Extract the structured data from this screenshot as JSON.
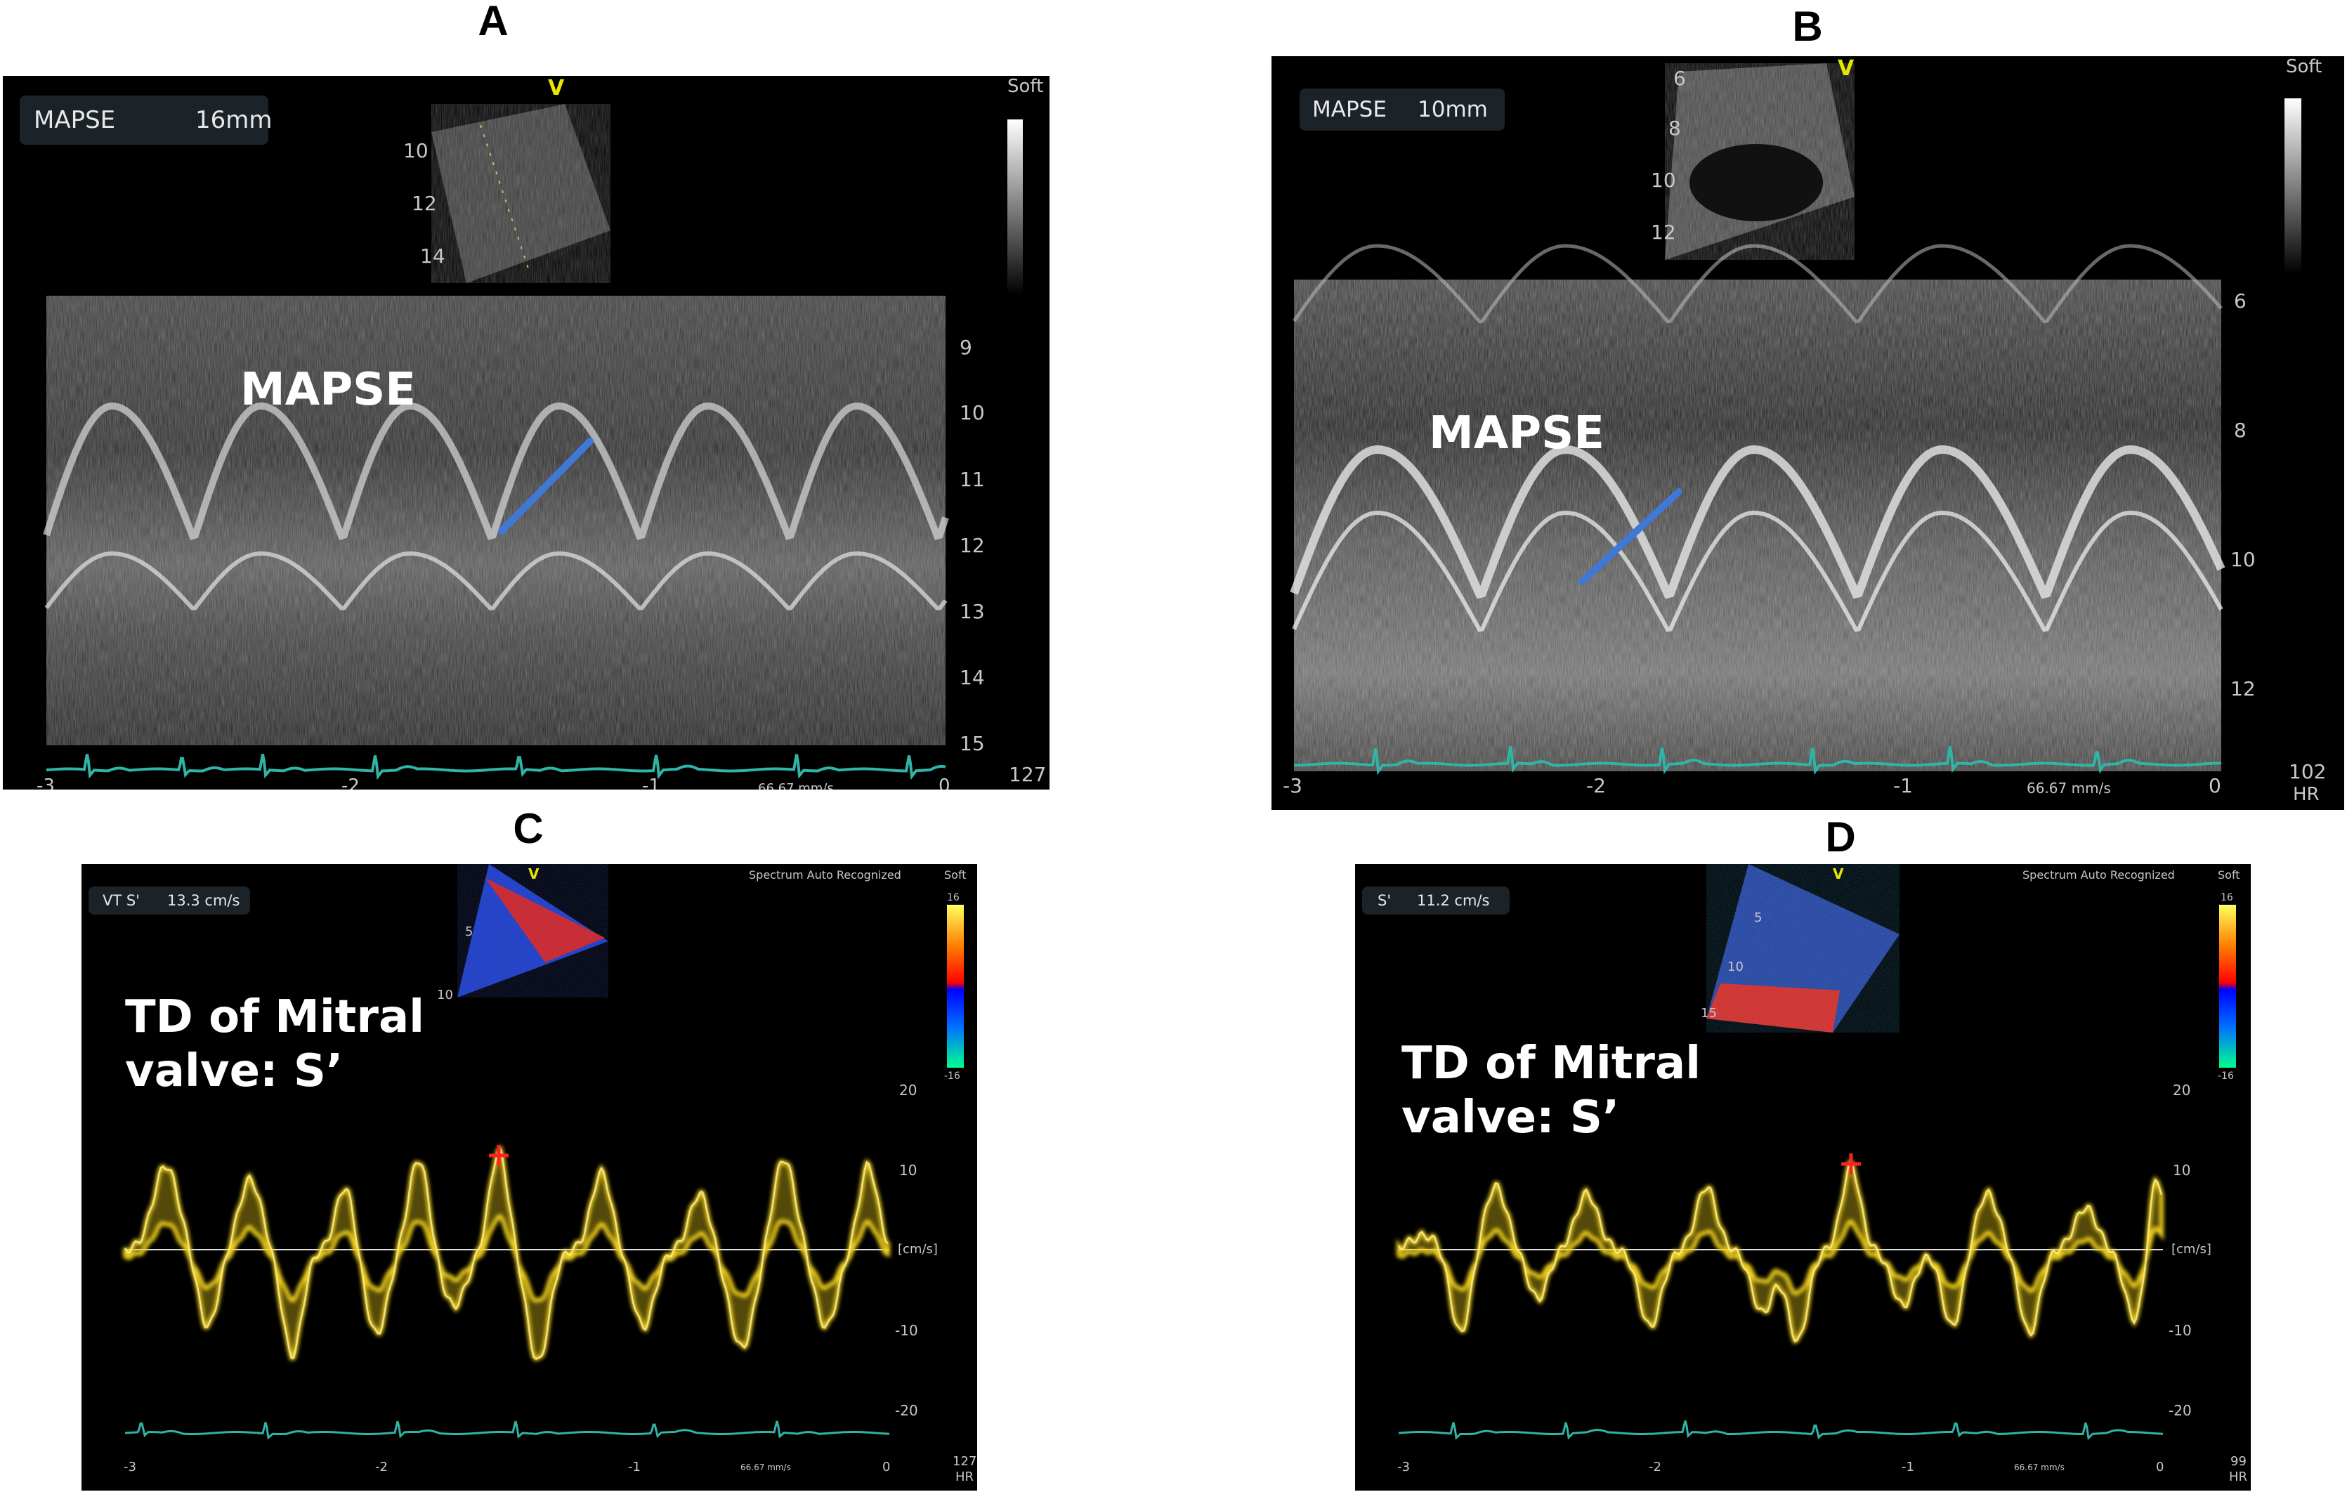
{
  "panels": {
    "a": {
      "letter": "A",
      "measure_name": "MAPSE",
      "measure_value": "16mm",
      "overlay": "MAPSE",
      "soft": "Soft",
      "v": "V",
      "depth_sector": [
        "10",
        "12",
        "14"
      ],
      "depth_ticks": [
        "9",
        "10",
        "11",
        "12",
        "13",
        "14",
        "15"
      ],
      "time_ticks": [
        "-3",
        "-2",
        "-1",
        "0"
      ],
      "speed": "66.67 mm/s",
      "hr": "127"
    },
    "b": {
      "letter": "B",
      "measure_name": "MAPSE",
      "measure_value": "10mm",
      "overlay": "MAPSE",
      "soft": "Soft",
      "v": "V",
      "depth_sector": [
        "6",
        "8",
        "10",
        "12"
      ],
      "depth_ticks": [
        "6",
        "8",
        "10",
        "12"
      ],
      "time_ticks": [
        "-3",
        "-2",
        "-1",
        "0"
      ],
      "speed": "66.67 mm/s",
      "hr": "102",
      "hr_label": "HR"
    },
    "c": {
      "letter": "C",
      "measure_name": "VT S'",
      "measure_value": "13.3 cm/s",
      "overlay": "TD of Mitral\nvalve: S’",
      "soft": "Soft",
      "v": "V",
      "spectrum": "Spectrum Auto Recognized",
      "scale_top": "16",
      "scale_bottom": "-16",
      "depth_sector": [
        "5",
        "10"
      ],
      "vel_ticks": [
        "20",
        "10",
        "[cm/s]",
        "-10",
        "-20"
      ],
      "time_ticks": [
        "-3",
        "-2",
        "-1",
        "0"
      ],
      "speed": "66.67 mm/s",
      "hr": "127",
      "hr_label": "HR"
    },
    "d": {
      "letter": "D",
      "measure_name": "S'",
      "measure_value": "11.2 cm/s",
      "overlay": "TD of Mitral\nvalve: S’",
      "soft": "Soft",
      "v": "V",
      "spectrum": "Spectrum Auto Recognized",
      "scale_top": "16",
      "scale_bottom": "-16",
      "depth_sector": [
        "5",
        "10",
        "15"
      ],
      "vel_ticks": [
        "20",
        "10",
        "[cm/s]",
        "-10",
        "-20"
      ],
      "time_ticks": [
        "-3",
        "-2",
        "-1",
        "0"
      ],
      "speed": "66.67 mm/s",
      "hr": "99",
      "hr_label": "HR"
    }
  },
  "colors": {
    "ecg": "#2fb5a6",
    "caliper": "#3f78d6",
    "doppler": "#f2d21b",
    "marker": "#ff2020"
  }
}
